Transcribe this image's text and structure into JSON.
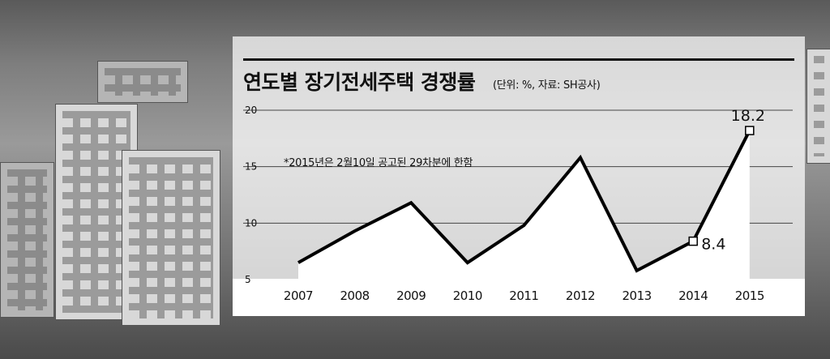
{
  "chart_data": {
    "type": "line",
    "title": "연도별 장기전세주택 경쟁률",
    "unit_note": "(단위: %, 자료: SH공사)",
    "annotation": "*2015년은 2월10일 공고된 29차분에 한함",
    "xlabel": "",
    "ylabel": "",
    "categories": [
      "2007",
      "2008",
      "2009",
      "2010",
      "2011",
      "2012",
      "2013",
      "2014",
      "2015"
    ],
    "series": [
      {
        "values": [
          6.5,
          9.3,
          11.8,
          6.5,
          9.8,
          15.8,
          5.8,
          8.4,
          18.2
        ]
      }
    ],
    "data_labels": [
      {
        "category": "2014",
        "text": "8.4"
      },
      {
        "category": "2015",
        "text": "18.2"
      }
    ],
    "yticks": [
      "5",
      "10",
      "15",
      "20"
    ],
    "ylim": [
      5,
      20
    ],
    "grid": true,
    "line_color": "#000000",
    "fill_color": "#ffffff"
  }
}
